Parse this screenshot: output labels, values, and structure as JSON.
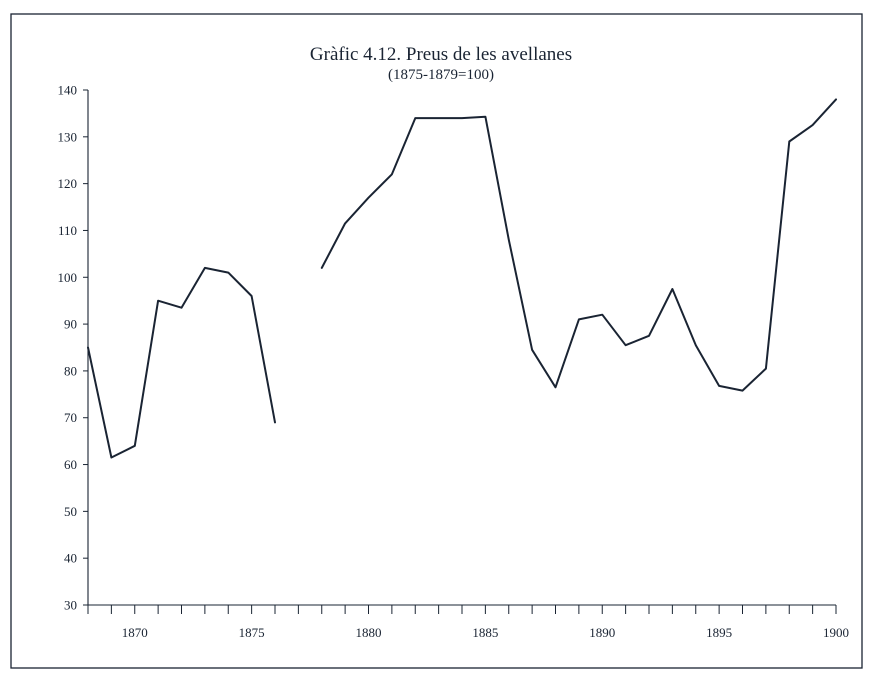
{
  "chart_data": {
    "type": "line",
    "title": "Gràfic 4.12. Preus de les avellanes",
    "subtitle": "(1875-1879=100)",
    "xlabel": "",
    "ylabel": "",
    "xlim": [
      1868,
      1900
    ],
    "ylim": [
      30,
      140
    ],
    "y_ticks": [
      30,
      40,
      50,
      60,
      70,
      80,
      90,
      100,
      110,
      120,
      130,
      140
    ],
    "x_minor_ticks_every": 1,
    "x_tick_labels": [
      1870,
      1875,
      1880,
      1885,
      1890,
      1895,
      1900
    ],
    "grid": false,
    "legend": "none",
    "line_color": "#1a2433",
    "series": [
      {
        "x": [
          1868,
          1869,
          1870,
          1871,
          1872,
          1873,
          1874,
          1875,
          1876,
          1877,
          1878,
          1879,
          1880,
          1881,
          1882,
          1883,
          1884,
          1885,
          1886,
          1887,
          1888,
          1889,
          1890,
          1891,
          1892,
          1893,
          1894,
          1895,
          1896,
          1897,
          1898,
          1899,
          1900
        ],
        "y": [
          85,
          61.5,
          64,
          95,
          93.5,
          102,
          101,
          96,
          69,
          null,
          102,
          111.5,
          117,
          122,
          134,
          134,
          134,
          134.3,
          108,
          84.5,
          76.5,
          91,
          92,
          85.5,
          87.5,
          97.5,
          85.5,
          76.8,
          75.8,
          80.5,
          129,
          132.5,
          138
        ]
      }
    ]
  }
}
